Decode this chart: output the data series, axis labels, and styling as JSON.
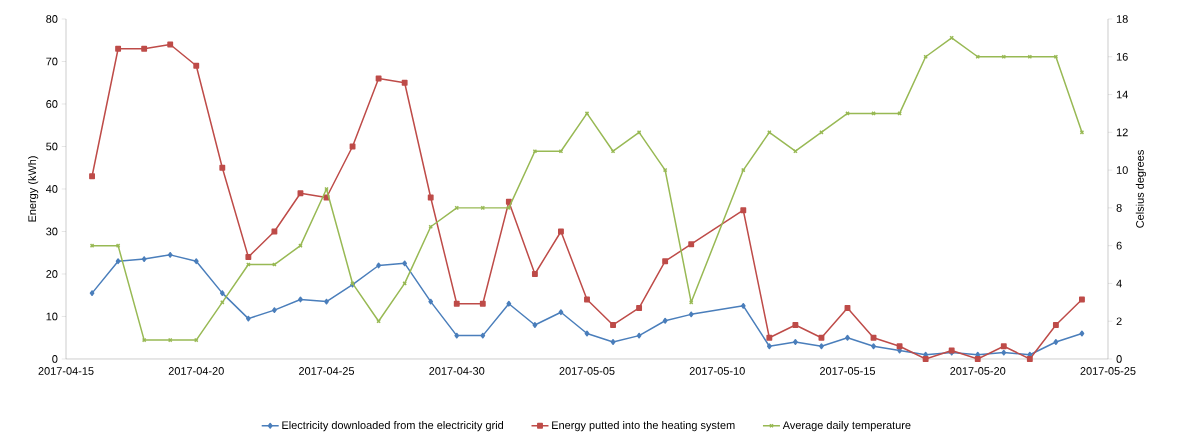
{
  "chart_data": {
    "type": "line",
    "ylabel": "Energy (kWh)",
    "y2label": "Celsius degrees",
    "x": [
      "2017-04-16",
      "2017-04-17",
      "2017-04-18",
      "2017-04-19",
      "2017-04-20",
      "2017-04-21",
      "2017-04-22",
      "2017-04-23",
      "2017-04-24",
      "2017-04-25",
      "2017-04-26",
      "2017-04-27",
      "2017-04-28",
      "2017-04-29",
      "2017-04-30",
      "2017-05-01",
      "2017-05-02",
      "2017-05-03",
      "2017-05-04",
      "2017-05-05",
      "2017-05-06",
      "2017-05-07",
      "2017-05-08",
      "2017-05-09",
      "2017-05-11",
      "2017-05-12",
      "2017-05-13",
      "2017-05-14",
      "2017-05-15",
      "2017-05-16",
      "2017-05-17",
      "2017-05-18",
      "2017-05-19",
      "2017-05-20",
      "2017-05-21",
      "2017-05-22",
      "2017-05-23",
      "2017-05-24"
    ],
    "series": [
      {
        "name": "Electricity downloaded from the electricity grid",
        "color": "#4a7ebb",
        "marker": "diamond",
        "values": [
          15.5,
          23,
          23.5,
          24.5,
          23,
          15.5,
          9.5,
          11.5,
          14,
          13.5,
          17.5,
          22,
          22.5,
          13.5,
          5.5,
          5.5,
          13,
          8,
          11,
          6,
          4,
          5.5,
          9,
          10.5,
          12.5,
          3,
          4,
          3,
          5,
          3,
          2,
          1,
          1.5,
          1,
          1.5,
          1,
          4,
          6
        ]
      },
      {
        "name": "Energy putted into the heating system",
        "color": "#be4b48",
        "marker": "square",
        "values": [
          43,
          73,
          73,
          74,
          69,
          45,
          24,
          30,
          39,
          38,
          50,
          66,
          65,
          38,
          13,
          13,
          37,
          20,
          30,
          14,
          8,
          12,
          23,
          27,
          35,
          5,
          8,
          5,
          12,
          5,
          3,
          0,
          2,
          0,
          3,
          0,
          8,
          14
        ]
      },
      {
        "name": "Average daily temperature",
        "color": "#98b954",
        "marker": "cross",
        "axis": "y2",
        "values": [
          6,
          6,
          1,
          1,
          1,
          3,
          5,
          5,
          6,
          9,
          4,
          2,
          4,
          7,
          8,
          8,
          8,
          11,
          11,
          13,
          11,
          12,
          10,
          3,
          10,
          12,
          11,
          12,
          13,
          13,
          13,
          16,
          17,
          16,
          16,
          16,
          16,
          12
        ]
      }
    ],
    "xlim": [
      "2017-04-15",
      "2017-05-25"
    ],
    "xticks": [
      "2017-04-15",
      "2017-04-20",
      "2017-04-25",
      "2017-04-30",
      "2017-05-05",
      "2017-05-10",
      "2017-05-15",
      "2017-05-20",
      "2017-05-25"
    ],
    "ylim": [
      0,
      80
    ],
    "yticks": [
      0,
      10,
      20,
      30,
      40,
      50,
      60,
      70,
      80
    ],
    "y2lim": [
      0,
      18
    ],
    "y2ticks": [
      0,
      2,
      4,
      6,
      8,
      10,
      12,
      14,
      16,
      18
    ],
    "legend": "bottom"
  }
}
